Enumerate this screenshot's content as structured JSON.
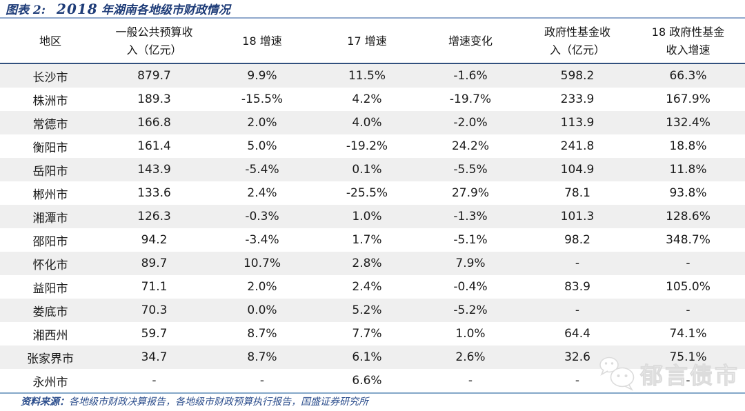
{
  "title": {
    "label": "图表 2:",
    "year": "2018",
    "text": "年湖南各地级市财政情况"
  },
  "table": {
    "columns": [
      "地区",
      "一般公共预算收\n入（亿元）",
      "18 增速",
      "17 增速",
      "增速变化",
      "政府性基金收\n入（亿元）",
      "18 政府性基金\n收入增速"
    ],
    "rows": [
      [
        "长沙市",
        "879.7",
        "9.9%",
        "11.5%",
        "-1.6%",
        "598.2",
        "66.3%"
      ],
      [
        "株洲市",
        "189.3",
        "-15.5%",
        "4.2%",
        "-19.7%",
        "233.9",
        "167.9%"
      ],
      [
        "常德市",
        "166.8",
        "2.0%",
        "4.0%",
        "-2.0%",
        "113.9",
        "132.4%"
      ],
      [
        "衡阳市",
        "161.4",
        "5.0%",
        "-19.2%",
        "24.2%",
        "241.8",
        "18.8%"
      ],
      [
        "岳阳市",
        "143.9",
        "-5.4%",
        "0.1%",
        "-5.5%",
        "104.9",
        "11.8%"
      ],
      [
        "郴州市",
        "133.6",
        "2.4%",
        "-25.5%",
        "27.9%",
        "78.1",
        "93.8%"
      ],
      [
        "湘潭市",
        "126.3",
        "-0.3%",
        "1.0%",
        "-1.3%",
        "101.3",
        "128.6%"
      ],
      [
        "邵阳市",
        "94.2",
        "-3.4%",
        "1.7%",
        "-5.1%",
        "98.2",
        "348.7%"
      ],
      [
        "怀化市",
        "89.7",
        "10.7%",
        "2.8%",
        "7.9%",
        "-",
        "-"
      ],
      [
        "益阳市",
        "71.1",
        "2.0%",
        "2.4%",
        "-0.4%",
        "83.9",
        "105.0%"
      ],
      [
        "娄底市",
        "70.3",
        "0.0%",
        "5.2%",
        "-5.2%",
        "-",
        "-"
      ],
      [
        "湘西州",
        "59.7",
        "8.7%",
        "7.7%",
        "1.0%",
        "64.4",
        "74.1%"
      ],
      [
        "张家界市",
        "34.7",
        "8.7%",
        "6.1%",
        "2.6%",
        "32.6",
        "75.1%"
      ],
      [
        "永州市",
        "-",
        "-",
        "6.6%",
        "-",
        "-",
        "-"
      ]
    ]
  },
  "footer": {
    "source_label": "资料来源：",
    "source_text": "各地级市财政决算报告，各地级市财政预算执行报告，国盛证券研究所"
  },
  "watermark": {
    "text": "郁言债市",
    "icon": "wechat-icon"
  },
  "colors": {
    "title_navy": "#1e3c78",
    "title_rule_blue": "#8fa8cc",
    "header_rule_navy": "#31507e",
    "bottom_rule_blue": "#84a7c8",
    "zebra_gray": "#efefef",
    "footer_blue": "#2b4d8c",
    "watermark_gray": "#dcdcdc"
  }
}
